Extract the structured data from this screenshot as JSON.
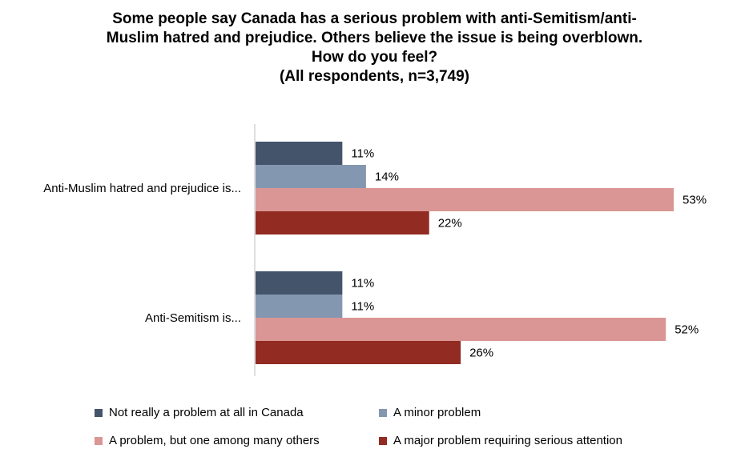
{
  "chart_data": {
    "type": "bar",
    "orientation": "horizontal",
    "title_lines": [
      "Some people say Canada has a serious problem with anti-Semitism/anti-",
      "Muslim hatred and prejudice. Others believe the issue is being overblown.",
      "How do you feel?",
      "(All respondents, n=3,749)"
    ],
    "categories": [
      "Anti-Muslim hatred and prejudice is...",
      "Anti-Semitism is..."
    ],
    "series": [
      {
        "name": "Not really a problem at all in Canada",
        "color": "#44546a",
        "values": [
          11,
          11
        ],
        "labels": [
          "11%",
          "11%"
        ]
      },
      {
        "name": "A minor problem",
        "color": "#8497b0",
        "values": [
          14,
          11
        ],
        "labels": [
          "14%",
          "11%"
        ]
      },
      {
        "name": "A problem, but one among many others",
        "color": "#d99694",
        "values": [
          53,
          52
        ],
        "labels": [
          "53%",
          "52%"
        ]
      },
      {
        "name": "A major problem requiring serious attention",
        "color": "#922b21",
        "values": [
          22,
          26
        ],
        "labels": [
          "22%",
          "26%"
        ]
      }
    ],
    "xlim": [
      0,
      55
    ],
    "grid": false,
    "legend_position": "bottom"
  }
}
